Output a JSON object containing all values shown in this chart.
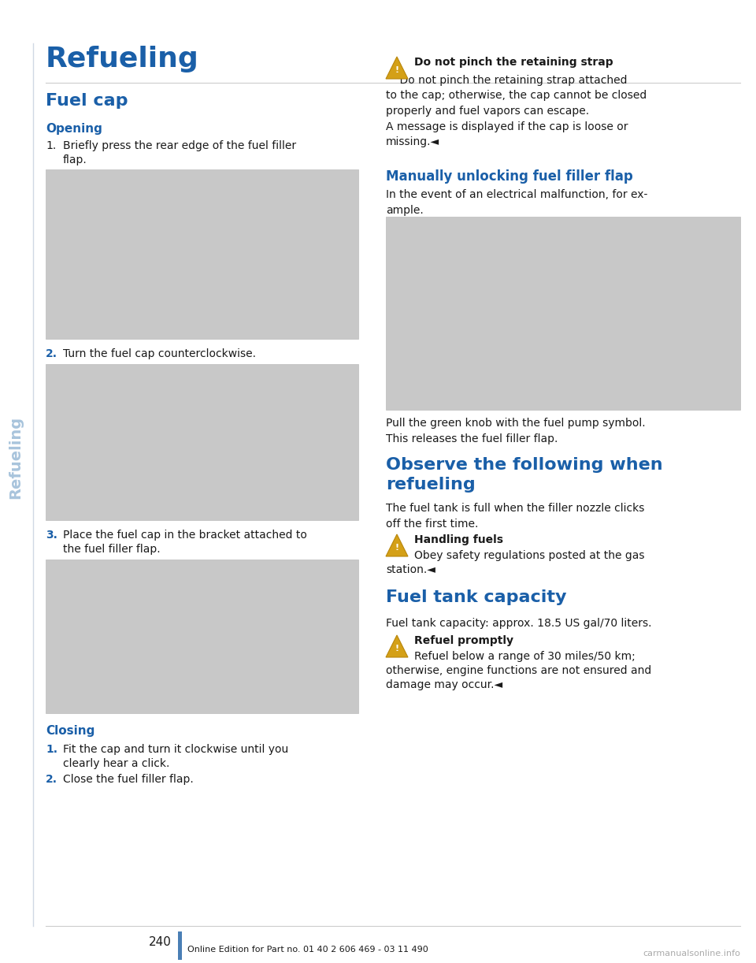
{
  "page_bg": "#ffffff",
  "sidebar_text": "Refueling",
  "sidebar_text_color": "#a8c4dc",
  "sidebar_line_color": "#c8d8e8",
  "title": "Refueling",
  "title_color": "#1a5fa8",
  "title_fontsize": 26,
  "section1_title": "Fuel cap",
  "blue_color": "#1a5fa8",
  "opening_fontsize": 11,
  "body_fontsize": 10,
  "body_color": "#1a1a1a",
  "warn_icon_color": "#d4a017",
  "warn_icon_border": "#b8860b",
  "blue_bar_color": "#4a7fb5",
  "page_number": "240",
  "footer_text": "Online Edition for Part no. 01 40 2 606 469 - 03 11 490",
  "footer_watermark": "carmanualsonline.info",
  "img_gray": "#cccccc",
  "img_border": "#bbbbbb"
}
